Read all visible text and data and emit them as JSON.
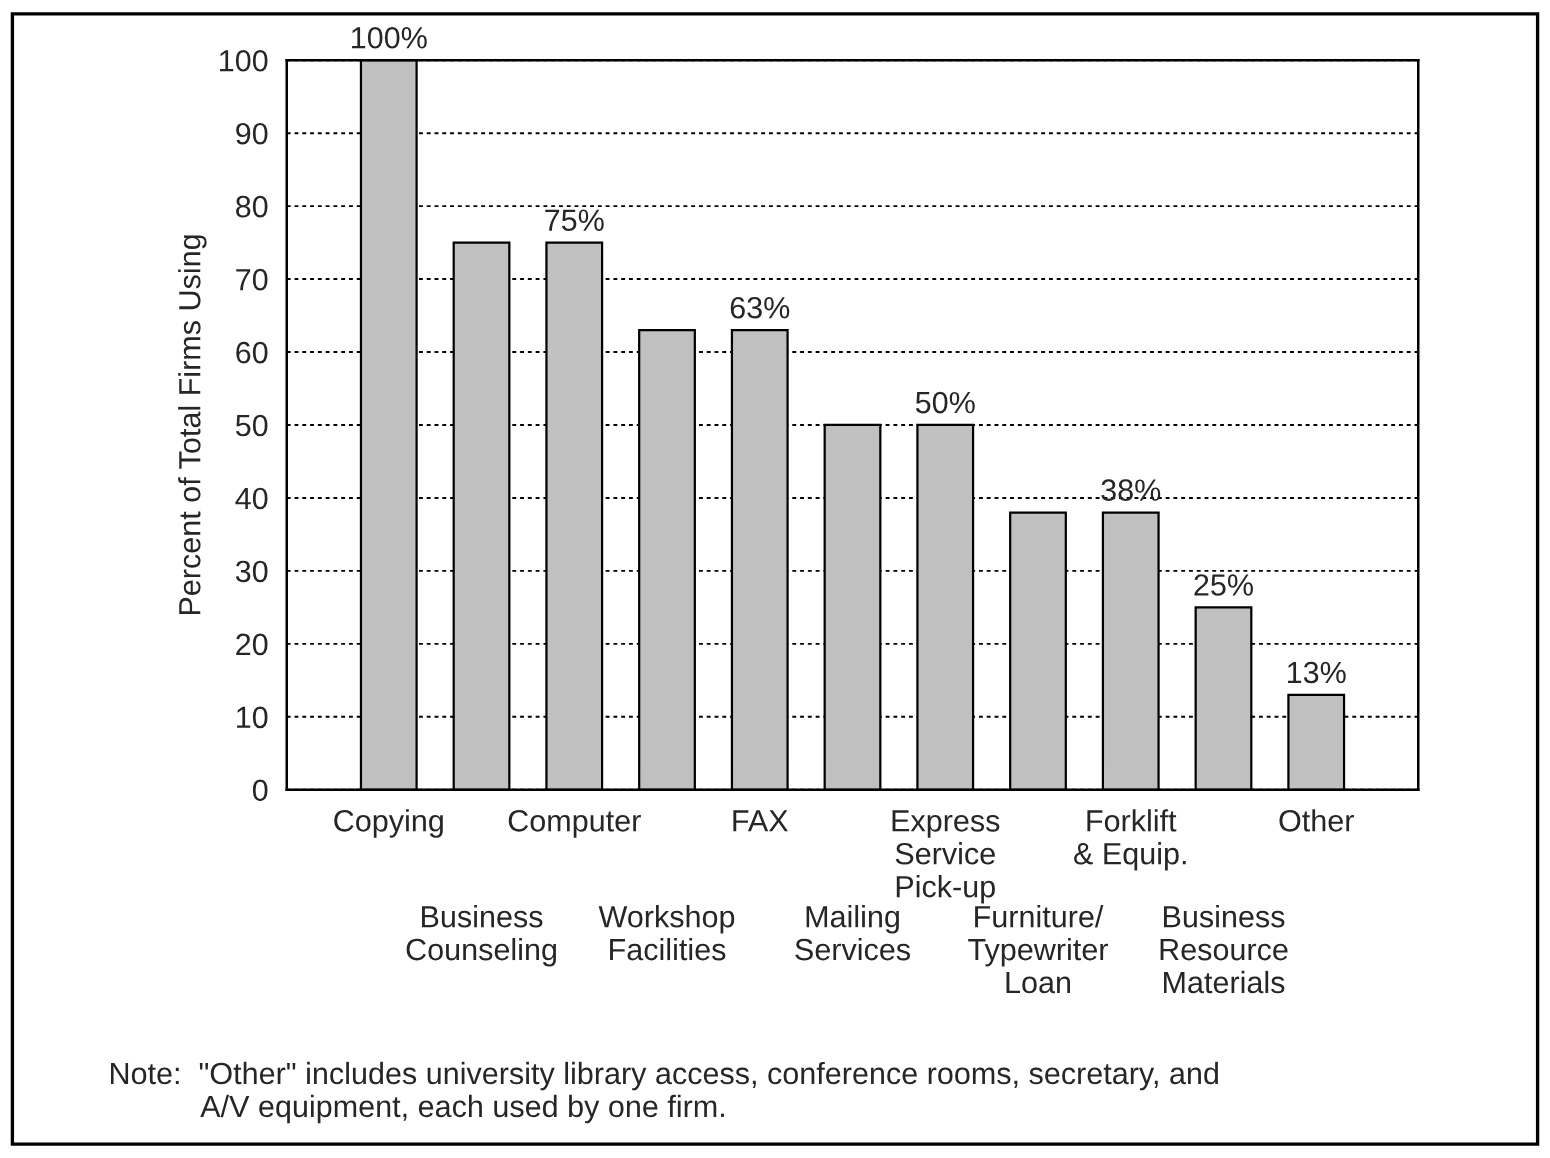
{
  "chart_data": {
    "type": "bar",
    "ylabel": "Percent of Total Firms Using",
    "categories": [
      "Copying",
      "Business\nCounseling",
      "Computer",
      "Workshop\nFacilities",
      "FAX",
      "Mailing\nServices",
      "Express\nService\nPick-up",
      "Furniture/\nTypewriter\nLoan",
      "Forklift\n& Equip.",
      "Business\nResource\nMaterials",
      "Other"
    ],
    "values": [
      100,
      75,
      75,
      63,
      63,
      50,
      50,
      38,
      38,
      25,
      13
    ],
    "value_labels": [
      "100%",
      null,
      "75%",
      null,
      "63%",
      null,
      "50%",
      null,
      "38%",
      "25%",
      "13%"
    ],
    "color": "#c0c0c0",
    "ylim": [
      0,
      100
    ],
    "yticks": [
      0,
      10,
      20,
      30,
      40,
      50,
      60,
      70,
      80,
      90,
      100
    ],
    "grid": "y",
    "annotations": [
      "Note:  \"Other\" includes university library access, conference rooms, secretary, and\n           A/V equipment, each used by one firm."
    ]
  }
}
